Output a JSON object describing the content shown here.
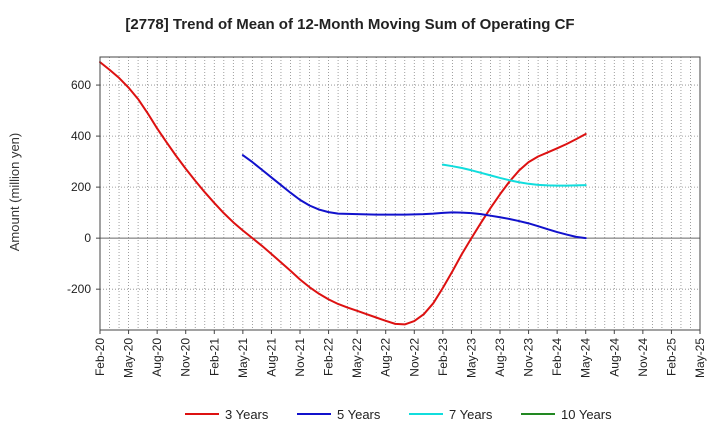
{
  "chart_data": {
    "type": "line",
    "title": "[2778]  Trend of Mean of 12-Month Moving Sum of Operating CF",
    "xlabel": "",
    "ylabel": "Amount (million yen)",
    "ylim": [
      -360,
      710
    ],
    "yticks": [
      600,
      400,
      200,
      0,
      -200
    ],
    "ytick_labels": [
      "600",
      "400",
      "200",
      "0",
      "-200"
    ],
    "x_start": "Feb-20",
    "x_end": "May-25",
    "tick_labels": [
      "Feb-20",
      "May-20",
      "Aug-20",
      "Nov-20",
      "Feb-21",
      "May-21",
      "Aug-21",
      "Nov-21",
      "Feb-22",
      "May-22",
      "Aug-22",
      "Nov-22",
      "Feb-23",
      "May-23",
      "Aug-23",
      "Nov-23",
      "Feb-24",
      "May-24",
      "Aug-24",
      "Nov-24",
      "Feb-25",
      "May-25"
    ],
    "grid": true,
    "legend_position": "bottom",
    "series": [
      {
        "name": "3 Years",
        "color": "#dd1111",
        "points": [
          [
            0,
            690
          ],
          [
            1,
            660
          ],
          [
            2,
            628
          ],
          [
            3,
            590
          ],
          [
            4,
            545
          ],
          [
            5,
            490
          ],
          [
            6,
            430
          ],
          [
            7,
            375
          ],
          [
            8,
            322
          ],
          [
            9,
            272
          ],
          [
            10,
            225
          ],
          [
            11,
            180
          ],
          [
            12,
            138
          ],
          [
            13,
            98
          ],
          [
            14,
            62
          ],
          [
            15,
            30
          ],
          [
            16,
            0
          ],
          [
            17,
            -30
          ],
          [
            18,
            -62
          ],
          [
            19,
            -95
          ],
          [
            20,
            -128
          ],
          [
            21,
            -162
          ],
          [
            22,
            -192
          ],
          [
            23,
            -218
          ],
          [
            24,
            -240
          ],
          [
            25,
            -258
          ],
          [
            26,
            -272
          ],
          [
            27,
            -285
          ],
          [
            28,
            -298
          ],
          [
            29,
            -311
          ],
          [
            30,
            -324
          ],
          [
            31,
            -336
          ],
          [
            32,
            -338
          ],
          [
            33,
            -325
          ],
          [
            34,
            -298
          ],
          [
            35,
            -255
          ],
          [
            36,
            -195
          ],
          [
            37,
            -130
          ],
          [
            38,
            -62
          ],
          [
            39,
            0
          ],
          [
            40,
            60
          ],
          [
            41,
            118
          ],
          [
            42,
            172
          ],
          [
            43,
            222
          ],
          [
            44,
            265
          ],
          [
            45,
            298
          ],
          [
            46,
            320
          ],
          [
            47,
            336
          ],
          [
            48,
            352
          ],
          [
            49,
            369
          ],
          [
            50,
            388
          ],
          [
            51,
            408
          ]
        ]
      },
      {
        "name": "5 Years",
        "color": "#1111cc",
        "points": [
          [
            15,
            325
          ],
          [
            16,
            298
          ],
          [
            17,
            268
          ],
          [
            18,
            238
          ],
          [
            19,
            208
          ],
          [
            20,
            178
          ],
          [
            21,
            150
          ],
          [
            22,
            128
          ],
          [
            23,
            112
          ],
          [
            24,
            102
          ],
          [
            25,
            96
          ],
          [
            26,
            95
          ],
          [
            27,
            94
          ],
          [
            28,
            93
          ],
          [
            29,
            92
          ],
          [
            30,
            92
          ],
          [
            31,
            92
          ],
          [
            32,
            92
          ],
          [
            33,
            93
          ],
          [
            34,
            94
          ],
          [
            35,
            96
          ],
          [
            36,
            99
          ],
          [
            37,
            101
          ],
          [
            38,
            100
          ],
          [
            39,
            98
          ],
          [
            40,
            94
          ],
          [
            41,
            88
          ],
          [
            42,
            82
          ],
          [
            43,
            75
          ],
          [
            44,
            67
          ],
          [
            45,
            58
          ],
          [
            46,
            47
          ],
          [
            47,
            35
          ],
          [
            48,
            24
          ],
          [
            49,
            14
          ],
          [
            50,
            5
          ],
          [
            51,
            0
          ]
        ]
      },
      {
        "name": "7 Years",
        "color": "#11dddd",
        "points": [
          [
            36,
            288
          ],
          [
            37,
            282
          ],
          [
            38,
            275
          ],
          [
            39,
            266
          ],
          [
            40,
            256
          ],
          [
            41,
            246
          ],
          [
            42,
            236
          ],
          [
            43,
            227
          ],
          [
            44,
            219
          ],
          [
            45,
            213
          ],
          [
            46,
            209
          ],
          [
            47,
            207
          ],
          [
            48,
            206
          ],
          [
            49,
            206
          ],
          [
            50,
            207
          ],
          [
            51,
            208
          ]
        ]
      },
      {
        "name": "10 Years",
        "color": "#228822",
        "points": []
      }
    ]
  }
}
